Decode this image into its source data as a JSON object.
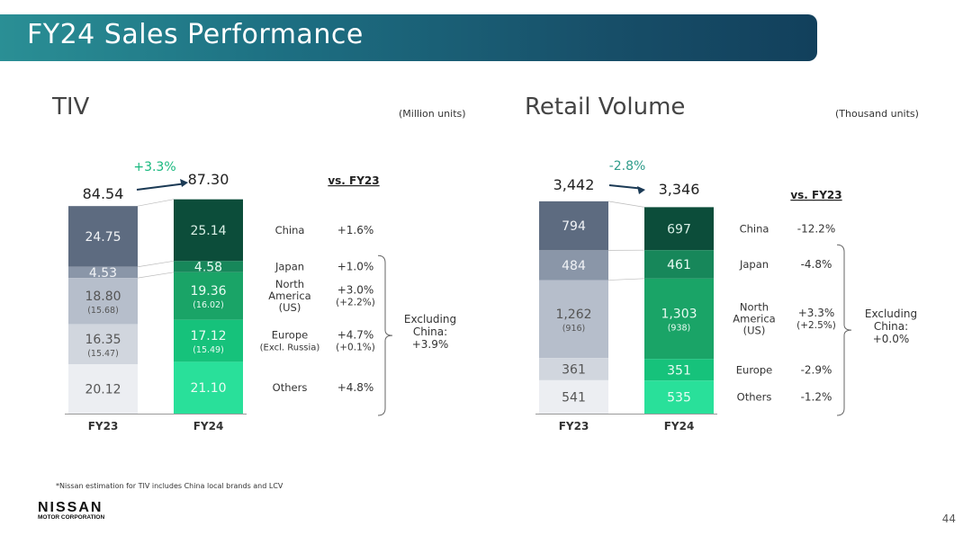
{
  "page": {
    "title": "FY24 Sales Performance",
    "number": "44",
    "footnote": "*Nissan estimation for TIV includes China local brands and LCV"
  },
  "logo": {
    "name": "NISSAN",
    "sub": "MOTOR CORPORATION"
  },
  "chart_data": [
    {
      "type": "bar",
      "title": "TIV",
      "unit_label": "(Million units)",
      "categories": [
        "FY23",
        "FY24"
      ],
      "totals": [
        "84.54",
        "87.30"
      ],
      "change_label": "+3.3%",
      "vs_label": "vs. FY23",
      "segments": [
        {
          "name": "China",
          "values": [
            24.75,
            25.14
          ],
          "labels": [
            "24.75",
            "25.14"
          ],
          "sub": [
            "",
            ""
          ],
          "change": "+1.6%",
          "change_sub": ""
        },
        {
          "name": "Japan",
          "values": [
            4.53,
            4.58
          ],
          "labels": [
            "4.53",
            "4.58"
          ],
          "sub": [
            "",
            ""
          ],
          "change": "+1.0%",
          "change_sub": ""
        },
        {
          "name": "North America",
          "name_sub": "(US)",
          "values": [
            18.8,
            19.36
          ],
          "labels": [
            "18.80",
            "19.36"
          ],
          "sub": [
            "(15.68)",
            "(16.02)"
          ],
          "change": "+3.0%",
          "change_sub": "(+2.2%)"
        },
        {
          "name": "Europe",
          "name_sub": "(Excl. Russia)",
          "values": [
            16.35,
            17.12
          ],
          "labels": [
            "16.35",
            "17.12"
          ],
          "sub": [
            "(15.47)",
            "(15.49)"
          ],
          "change": "+4.7%",
          "change_sub": "(+0.1%)"
        },
        {
          "name": "Others",
          "values": [
            20.12,
            21.1
          ],
          "labels": [
            "20.12",
            "21.10"
          ],
          "sub": [
            "",
            ""
          ],
          "change": "+4.8%",
          "change_sub": ""
        }
      ],
      "brace_note": [
        "Excluding",
        "China:",
        "+3.9%"
      ]
    },
    {
      "type": "bar",
      "title": "Retail Volume",
      "unit_label": "(Thousand units)",
      "categories": [
        "FY23",
        "FY24"
      ],
      "totals": [
        "3,442",
        "3,346"
      ],
      "change_label": "-2.8%",
      "vs_label": "vs. FY23",
      "segments": [
        {
          "name": "China",
          "values": [
            794,
            697
          ],
          "labels": [
            "794",
            "697"
          ],
          "sub": [
            "",
            ""
          ],
          "change": "-12.2%",
          "change_sub": ""
        },
        {
          "name": "Japan",
          "values": [
            484,
            461
          ],
          "labels": [
            "484",
            "461"
          ],
          "sub": [
            "",
            ""
          ],
          "change": "-4.8%",
          "change_sub": ""
        },
        {
          "name": "North America",
          "name_sub": "(US)",
          "values": [
            1262,
            1303
          ],
          "labels": [
            "1,262",
            "1,303"
          ],
          "sub": [
            "(916)",
            "(938)"
          ],
          "change": "+3.3%",
          "change_sub": "(+2.5%)"
        },
        {
          "name": "Europe",
          "values": [
            361,
            351
          ],
          "labels": [
            "361",
            "351"
          ],
          "sub": [
            "",
            ""
          ],
          "change": "-2.9%",
          "change_sub": ""
        },
        {
          "name": "Others",
          "values": [
            541,
            535
          ],
          "labels": [
            "541",
            "535"
          ],
          "sub": [
            "",
            ""
          ],
          "change": "-1.2%",
          "change_sub": ""
        }
      ],
      "brace_note": [
        "Excluding",
        "China:",
        "+0.0%"
      ]
    }
  ],
  "colors": {
    "fy23": [
      "#5d6b80",
      "#8a96a8",
      "#b6becb",
      "#d1d6de",
      "#eceef2"
    ],
    "fy24": [
      "#0c4d3a",
      "#17875a",
      "#1aa467",
      "#16c27b",
      "#29e09a"
    ],
    "tiv_change": "#17b87e",
    "rv_change": "#2f9c8a"
  }
}
